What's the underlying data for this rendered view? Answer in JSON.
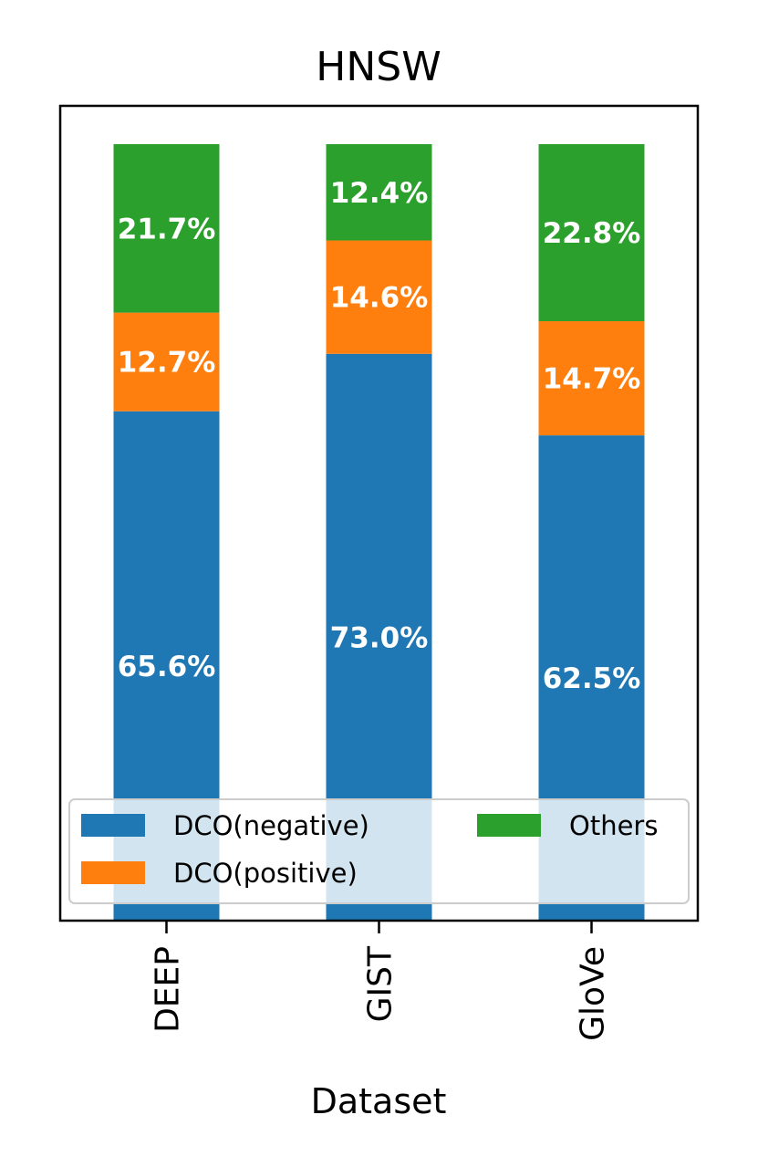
{
  "chart_data": {
    "type": "bar",
    "stacked": true,
    "title": "HNSW",
    "xlabel": "Dataset",
    "ylabel": "",
    "ylim": [
      0,
      100
    ],
    "categories": [
      "DEEP",
      "GIST",
      "GloVe"
    ],
    "series": [
      {
        "name": "DCO(negative)",
        "color": "#1f77b4",
        "values": [
          65.6,
          73.0,
          62.5
        ],
        "labels": [
          "65.6%",
          "73.0%",
          "62.5%"
        ]
      },
      {
        "name": "DCO(positive)",
        "color": "#ff7f0e",
        "values": [
          12.7,
          14.6,
          14.7
        ],
        "labels": [
          "12.7%",
          "14.6%",
          "14.7%"
        ]
      },
      {
        "name": "Others",
        "color": "#2ca02c",
        "values": [
          21.7,
          12.4,
          22.8
        ],
        "labels": [
          "21.7%",
          "12.4%",
          "22.8%"
        ]
      }
    ],
    "legend": {
      "position": "lower-center",
      "columns": 2
    }
  }
}
